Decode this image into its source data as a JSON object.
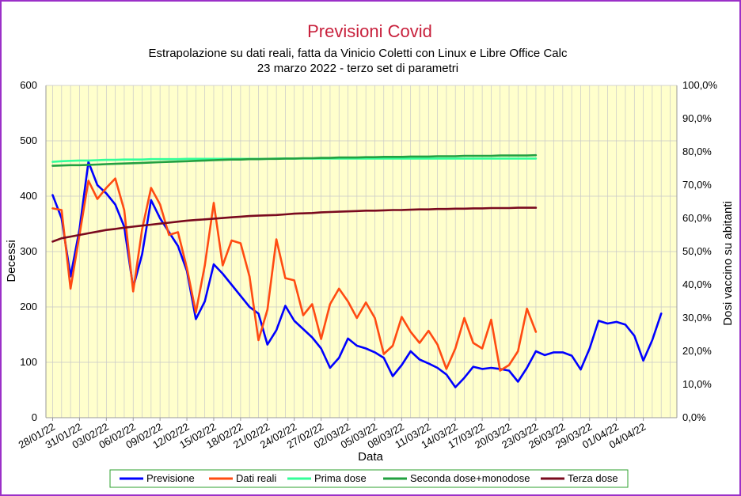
{
  "chart_data": {
    "type": "line",
    "title": "Previsioni Covid",
    "subtitle_lines": [
      "Estrapolazione su dati reali, fatta da Vinicio Coletti con Linux e Libre Office Calc",
      "23 marzo 2022 - terzo set di parametri"
    ],
    "xlabel": "Data",
    "ylabel": "Decessi",
    "y2label": "Dosi vaccino su abitanti",
    "ylim": [
      0,
      600
    ],
    "yticks": [
      "0",
      "100",
      "200",
      "300",
      "400",
      "500",
      "600"
    ],
    "y2lim": [
      0,
      100
    ],
    "y2ticks": [
      "0,0%",
      "10,0%",
      "20,0%",
      "30,0%",
      "40,0%",
      "50,0%",
      "60,0%",
      "70,0%",
      "80,0%",
      "90,0%",
      "100,0%"
    ],
    "x_start": "28/01/22",
    "num_days": 70,
    "xtick_labels": [
      "28/01/22",
      "31/01/22",
      "03/02/22",
      "06/02/22",
      "09/02/22",
      "12/02/22",
      "15/02/22",
      "18/02/22",
      "21/02/22",
      "24/02/22",
      "27/02/22",
      "02/03/22",
      "05/03/22",
      "08/03/22",
      "11/03/22",
      "14/03/22",
      "17/03/22",
      "20/03/22",
      "23/03/22",
      "26/03/22",
      "29/03/22",
      "01/04/22",
      "04/04/22"
    ],
    "grid": true,
    "legend_position": "bottom",
    "colors": {
      "plot_background": "#ffffcc",
      "grid": "#c8c8c8",
      "title": "#c8203c",
      "frame": "#9b30c8",
      "legend_border": "#2ea02e"
    },
    "series": [
      {
        "name": "Previsione",
        "color": "#0000ff",
        "axis": "left",
        "values": [
          402,
          360,
          255,
          340,
          462,
          420,
          405,
          385,
          345,
          235,
          295,
          393,
          360,
          335,
          310,
          265,
          178,
          210,
          277,
          260,
          240,
          220,
          200,
          188,
          132,
          158,
          202,
          175,
          160,
          145,
          125,
          90,
          108,
          143,
          130,
          125,
          118,
          108,
          75,
          95,
          120,
          105,
          98,
          90,
          78,
          55,
          72,
          92,
          88,
          90,
          88,
          85,
          65,
          90,
          120,
          113,
          118,
          118,
          112,
          87,
          125,
          175,
          170,
          173,
          168,
          148,
          103,
          140,
          188
        ]
      },
      {
        "name": "Dati reali",
        "color": "#ff4b12",
        "axis": "left",
        "values": [
          378,
          375,
          233,
          330,
          428,
          395,
          415,
          432,
          375,
          228,
          340,
          415,
          385,
          330,
          335,
          270,
          190,
          275,
          388,
          275,
          320,
          315,
          255,
          140,
          195,
          322,
          252,
          248,
          185,
          205,
          142,
          205,
          233,
          210,
          180,
          208,
          180,
          115,
          130,
          182,
          155,
          135,
          157,
          132,
          88,
          125,
          180,
          135,
          125,
          177,
          85,
          95,
          120,
          197,
          155
        ]
      },
      {
        "name": "Prima dose",
        "color": "#33ff99",
        "axis": "right",
        "values": [
          77.0,
          77.2,
          77.3,
          77.4,
          77.4,
          77.5,
          77.6,
          77.6,
          77.7,
          77.7,
          77.7,
          77.8,
          77.8,
          77.8,
          77.8,
          77.9,
          77.9,
          77.9,
          77.9,
          77.9,
          77.9,
          77.9,
          77.9,
          77.9,
          77.9,
          78.0,
          78.0,
          78.0,
          78.0,
          78.0,
          78.0,
          78.0,
          78.0,
          78.0,
          78.0,
          78.0,
          78.0,
          78.0,
          78.0,
          78.0,
          78.0,
          78.0,
          78.0,
          78.0,
          78.0,
          78.0,
          78.0,
          78.0,
          78.0,
          78.0,
          78.0,
          78.0,
          78.0,
          78.0,
          78.0
        ]
      },
      {
        "name": "Seconda dose+monodose",
        "color": "#22a040",
        "axis": "right",
        "values": [
          75.8,
          75.9,
          76.0,
          76.0,
          76.1,
          76.2,
          76.3,
          76.4,
          76.5,
          76.6,
          76.7,
          76.8,
          76.9,
          77.0,
          77.1,
          77.2,
          77.3,
          77.4,
          77.5,
          77.6,
          77.7,
          77.7,
          77.8,
          77.8,
          77.9,
          77.9,
          78.0,
          78.0,
          78.1,
          78.1,
          78.2,
          78.2,
          78.3,
          78.3,
          78.3,
          78.4,
          78.4,
          78.5,
          78.5,
          78.5,
          78.6,
          78.6,
          78.6,
          78.7,
          78.7,
          78.7,
          78.8,
          78.8,
          78.8,
          78.8,
          78.9,
          78.9,
          78.9,
          78.9,
          79.0
        ]
      },
      {
        "name": "Terza dose",
        "color": "#7a0a1e",
        "axis": "right",
        "values": [
          53.0,
          54.0,
          54.5,
          55.0,
          55.5,
          56.0,
          56.5,
          56.8,
          57.2,
          57.5,
          57.8,
          58.1,
          58.4,
          58.7,
          59.0,
          59.3,
          59.5,
          59.7,
          59.9,
          60.1,
          60.3,
          60.5,
          60.7,
          60.8,
          60.9,
          61.0,
          61.2,
          61.4,
          61.5,
          61.6,
          61.8,
          61.9,
          62.0,
          62.1,
          62.2,
          62.3,
          62.3,
          62.4,
          62.5,
          62.5,
          62.6,
          62.7,
          62.7,
          62.8,
          62.8,
          62.9,
          62.9,
          63.0,
          63.0,
          63.1,
          63.1,
          63.1,
          63.2,
          63.2,
          63.2
        ]
      }
    ]
  }
}
